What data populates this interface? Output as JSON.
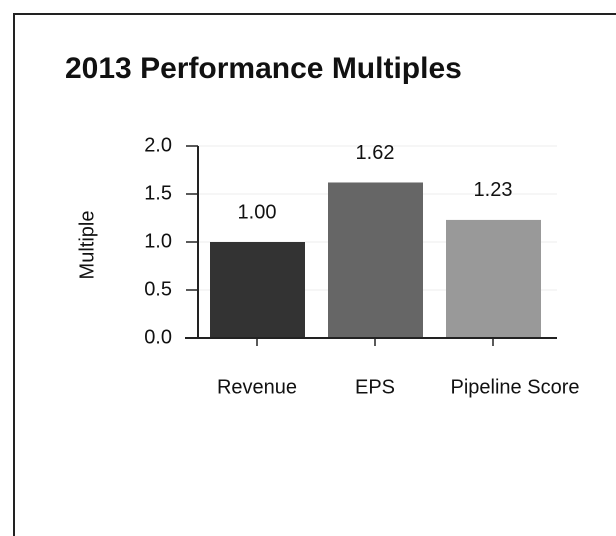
{
  "chart_data": {
    "type": "bar",
    "title": "2013 Performance Multiples",
    "y_label": "Multiple",
    "categories": [
      "Revenue",
      "EPS",
      "Pipeline Score"
    ],
    "values": [
      1.0,
      1.62,
      1.23
    ],
    "value_labels": [
      "1.00",
      "1.62",
      "1.23"
    ],
    "colors": [
      "#333333",
      "#666666",
      "#999999"
    ],
    "ylim": [
      0,
      2
    ],
    "yticks": [
      {
        "value": 0,
        "label": "0.0"
      },
      {
        "value": 0.5,
        "label": "0.5"
      },
      {
        "value": 1,
        "label": "1.0"
      },
      {
        "value": 1.5,
        "label": "1.5"
      },
      {
        "value": 2,
        "label": "2.0"
      }
    ],
    "grid": true
  }
}
